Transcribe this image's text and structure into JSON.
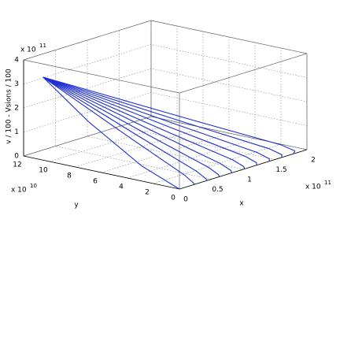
{
  "chart_data": {
    "type": "line3d",
    "xlabel": "x",
    "ylabel": "y",
    "zlabel": "v / 100 - Vsions / 100",
    "x_multiplier": {
      "base": "x 10",
      "exponent": "11"
    },
    "y_multiplier": {
      "base": "x 10",
      "exponent": "10"
    },
    "z_multiplier": {
      "base": "x 10",
      "exponent": "11"
    },
    "xlim": [
      0,
      2
    ],
    "xticks": [
      0,
      0.5,
      1,
      1.5,
      2
    ],
    "ylim": [
      0,
      12
    ],
    "yticks": [
      0,
      2,
      4,
      6,
      8,
      10,
      12
    ],
    "zlim": [
      0,
      4
    ],
    "zticks": [
      0,
      1,
      2,
      3,
      4
    ],
    "grid": true,
    "color": "#1f2fd0",
    "series": [
      {
        "x": [
          0,
          0,
          0.02,
          0
        ],
        "y": [
          10.5,
          7,
          3,
          0
        ],
        "z": [
          3.45,
          2.0,
          0.6,
          0
        ]
      },
      {
        "x": [
          0,
          0.15,
          0.24,
          0.25,
          0.24
        ],
        "y": [
          10.5,
          4.4,
          0.8,
          0.2,
          0
        ],
        "z": [
          3.45,
          1.45,
          0.3,
          0.05,
          0
        ]
      },
      {
        "x": [
          0,
          0.27,
          0.43,
          0.45,
          0.44
        ],
        "y": [
          10.5,
          4.4,
          0.8,
          0.2,
          0
        ],
        "z": [
          3.45,
          1.45,
          0.3,
          0.05,
          0
        ]
      },
      {
        "x": [
          0,
          0.39,
          0.62,
          0.65,
          0.63
        ],
        "y": [
          10.5,
          4.4,
          0.8,
          0.2,
          0
        ],
        "z": [
          3.45,
          1.45,
          0.3,
          0.05,
          0
        ]
      },
      {
        "x": [
          0,
          0.51,
          0.81,
          0.85,
          0.82
        ],
        "y": [
          10.5,
          4.4,
          0.8,
          0.2,
          0
        ],
        "z": [
          3.45,
          1.45,
          0.3,
          0.05,
          0
        ]
      },
      {
        "x": [
          0,
          0.63,
          1.0,
          1.05,
          1.02
        ],
        "y": [
          10.5,
          4.4,
          0.8,
          0.2,
          0
        ],
        "z": [
          3.45,
          1.45,
          0.3,
          0.05,
          0
        ]
      },
      {
        "x": [
          0,
          0.75,
          1.19,
          1.25,
          1.21
        ],
        "y": [
          10.5,
          4.4,
          0.8,
          0.2,
          0
        ],
        "z": [
          3.45,
          1.45,
          0.3,
          0.05,
          0
        ]
      },
      {
        "x": [
          0,
          0.87,
          1.38,
          1.45,
          1.41
        ],
        "y": [
          10.5,
          4.4,
          0.8,
          0.2,
          0
        ],
        "z": [
          3.45,
          1.45,
          0.3,
          0.05,
          0
        ]
      },
      {
        "x": [
          0,
          0.99,
          1.57,
          1.65,
          1.6
        ],
        "y": [
          10.5,
          4.4,
          0.8,
          0.2,
          0
        ],
        "z": [
          3.45,
          1.45,
          0.3,
          0.05,
          0
        ]
      },
      {
        "x": [
          0,
          1.11,
          1.76,
          1.85,
          1.79
        ],
        "y": [
          10.5,
          4.4,
          0.8,
          0.2,
          0
        ],
        "z": [
          3.45,
          1.45,
          0.3,
          0.05,
          0
        ]
      }
    ]
  }
}
